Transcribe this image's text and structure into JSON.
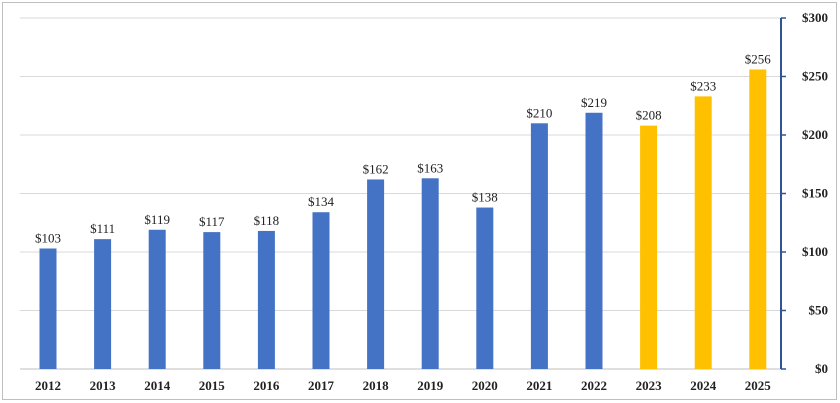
{
  "chart_data": {
    "type": "bar",
    "categories": [
      "2012",
      "2013",
      "2014",
      "2015",
      "2016",
      "2017",
      "2018",
      "2019",
      "2020",
      "2021",
      "2022",
      "2023",
      "2024",
      "2025"
    ],
    "series": [
      {
        "values": [
          103,
          111,
          119,
          117,
          118,
          134,
          162,
          163,
          138,
          210,
          219,
          208,
          233,
          256
        ],
        "data_labels": [
          "$103",
          "$111",
          "$119",
          "$117",
          "$118",
          "$134",
          "$162",
          "$163",
          "$138",
          "$210",
          "$219",
          "$208",
          "$233",
          "$256"
        ]
      }
    ],
    "bar_colors": [
      "#4472c4",
      "#4472c4",
      "#4472c4",
      "#4472c4",
      "#4472c4",
      "#4472c4",
      "#4472c4",
      "#4472c4",
      "#4472c4",
      "#4472c4",
      "#4472c4",
      "#ffc000",
      "#ffc000",
      "#ffc000"
    ],
    "y_axis": {
      "position": "right",
      "ylim": [
        0,
        300
      ],
      "ticks": [
        0,
        50,
        100,
        150,
        200,
        250,
        300
      ],
      "tick_labels": [
        "$0",
        "$50",
        "$100",
        "$150",
        "$200",
        "$250",
        "$300"
      ],
      "axis_color": "#2f5597"
    },
    "grid": true,
    "grid_color": "#d9d9d9",
    "legend": "none",
    "title": "",
    "xlabel": "",
    "ylabel": ""
  }
}
